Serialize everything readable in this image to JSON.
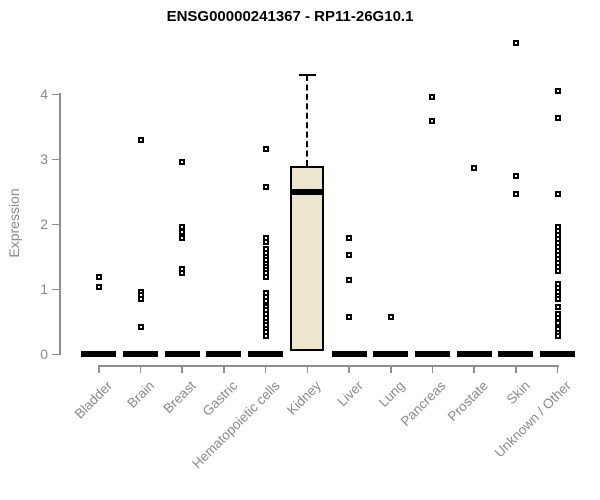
{
  "header": {
    "title": "ENSG00000241367 - RP11-26G10.1"
  },
  "chart_data": {
    "type": "boxplot",
    "title": "ENSG00000241367 - RP11-26G10.1",
    "xlabel": "",
    "ylabel": "Expression",
    "ylim": [
      0,
      4.8
    ],
    "yticks": [
      0,
      1,
      2,
      3,
      4
    ],
    "grid": false,
    "legend": "none",
    "categories": [
      "Bladder",
      "Brain",
      "Breast",
      "Gastric",
      "Hematopoietic cells",
      "Kidney",
      "Liver",
      "Lung",
      "Pancreas",
      "Prostate",
      "Skin",
      "Unknown / Other"
    ],
    "groups": [
      {
        "name": "Bladder",
        "zero_bar": true,
        "outliers": [
          1.18,
          1.03
        ]
      },
      {
        "name": "Brain",
        "zero_bar": true,
        "outliers": [
          3.29,
          0.96,
          0.91,
          0.85,
          0.42
        ]
      },
      {
        "name": "Breast",
        "zero_bar": true,
        "outliers": [
          2.96,
          1.95,
          1.88,
          1.78,
          1.31,
          1.24
        ]
      },
      {
        "name": "Gastric",
        "zero_bar": true,
        "outliers": []
      },
      {
        "name": "Hematopoietic cells",
        "zero_bar": true,
        "outliers": [
          3.15,
          2.57,
          1.78,
          1.73,
          1.61,
          1.55,
          1.5,
          1.45,
          1.39,
          1.34,
          1.29,
          1.24,
          1.19,
          0.94,
          0.88,
          0.82,
          0.73,
          0.68,
          0.61,
          0.55,
          0.5,
          0.45,
          0.39,
          0.34,
          0.28
        ]
      },
      {
        "name": "Kidney",
        "zero_bar": false,
        "box": {
          "q1": 0.05,
          "median": 2.5,
          "q3": 2.9,
          "whisker_high": 4.3
        },
        "outliers": []
      },
      {
        "name": "Liver",
        "zero_bar": true,
        "outliers": [
          1.78,
          1.52,
          1.14,
          0.57
        ]
      },
      {
        "name": "Lung",
        "zero_bar": true,
        "outliers": [
          0.57
        ]
      },
      {
        "name": "Pancreas",
        "zero_bar": true,
        "outliers": [
          3.95,
          3.58
        ]
      },
      {
        "name": "Prostate",
        "zero_bar": true,
        "outliers": [
          2.86
        ]
      },
      {
        "name": "Skin",
        "zero_bar": true,
        "outliers": [
          4.79,
          2.74,
          2.46
        ]
      },
      {
        "name": "Unknown / Other",
        "zero_bar": true,
        "outliers": [
          4.05,
          3.63,
          2.46,
          1.95,
          1.89,
          1.83,
          1.77,
          1.71,
          1.65,
          1.58,
          1.52,
          1.46,
          1.4,
          1.34,
          1.28,
          1.08,
          1.02,
          0.95,
          0.89,
          0.85,
          0.73,
          0.61,
          0.55,
          0.48,
          0.38,
          0.32,
          0.27
        ]
      }
    ],
    "colors": {
      "box_fill": "#ece6cf",
      "box_border": "#000000",
      "point": "#000000",
      "axis": "#8e8e8e",
      "tick_label": "#8a8a8a",
      "title": "#000000",
      "background": "#ffffff"
    }
  }
}
